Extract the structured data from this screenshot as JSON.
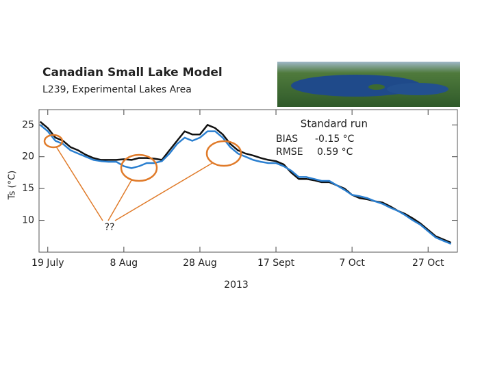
{
  "chart_data": {
    "type": "line",
    "title": "Canadian Small Lake Model",
    "subtitle": "L239, Experimental Lakes Area",
    "y_label": "Ts (°C)",
    "x_label": "2013",
    "annotations": [
      "Standard run",
      "BIAS",
      "-0.15 °C",
      "RMSE",
      "0.59 °C",
      "??"
    ],
    "x": [
      -2,
      0,
      2,
      4,
      6,
      8,
      10,
      12,
      14,
      16,
      18,
      20,
      22,
      24,
      26,
      28,
      30,
      32,
      34,
      36,
      38,
      40,
      42,
      44,
      46,
      48,
      50,
      52,
      54,
      56,
      58,
      60,
      62,
      64,
      66,
      68,
      70,
      72,
      74,
      76,
      78,
      80,
      82,
      84,
      86,
      88,
      90,
      92,
      94,
      96,
      98,
      100,
      102,
      104,
      106
    ],
    "series": [
      {
        "color": "#111111",
        "values": [
          25.5,
          24.5,
          23,
          22.5,
          21.5,
          21,
          20.3,
          19.8,
          19.5,
          19.5,
          19.5,
          19.6,
          19.5,
          19.8,
          19.8,
          19.7,
          19.5,
          21,
          22.5,
          24,
          23.5,
          23.5,
          25,
          24.5,
          23.5,
          22,
          21,
          20.5,
          20.2,
          19.8,
          19.5,
          19.3,
          18.8,
          17.5,
          16.5,
          16.5,
          16.3,
          16,
          16,
          15.5,
          15,
          14,
          13.5,
          13.3,
          13,
          12.8,
          12.2,
          11.5,
          11,
          10.3,
          9.5,
          8.5,
          7.5,
          7,
          6.5
        ]
      },
      {
        "color": "#2a7fd0",
        "values": [
          25,
          24,
          22.5,
          22,
          21,
          20.5,
          20,
          19.5,
          19.3,
          19.2,
          19.2,
          18.5,
          18.2,
          18.5,
          19,
          19,
          19.3,
          20.5,
          22,
          23,
          22.5,
          23,
          24,
          24,
          23,
          21.5,
          20.5,
          20,
          19.5,
          19.2,
          19,
          19,
          18.5,
          17.8,
          16.8,
          16.8,
          16.5,
          16.2,
          16.2,
          15.5,
          14.8,
          14,
          13.8,
          13.5,
          13,
          12.6,
          12,
          11.5,
          10.8,
          10,
          9.3,
          8.3,
          7.3,
          6.8,
          6.3
        ]
      }
    ],
    "xlim": [
      -2.3,
      107.7
    ],
    "xticks": [
      {
        "value": 0,
        "label": "19 July"
      },
      {
        "value": 20,
        "label": "8 Aug"
      },
      {
        "value": 40,
        "label": "28 Aug"
      },
      {
        "value": 60,
        "label": "17 Sept"
      },
      {
        "value": 80,
        "label": "7 Oct"
      },
      {
        "value": 100,
        "label": "27 Oct"
      }
    ],
    "ylim": [
      5,
      27.4
    ],
    "yticks": [
      10,
      15,
      20,
      25
    ]
  }
}
